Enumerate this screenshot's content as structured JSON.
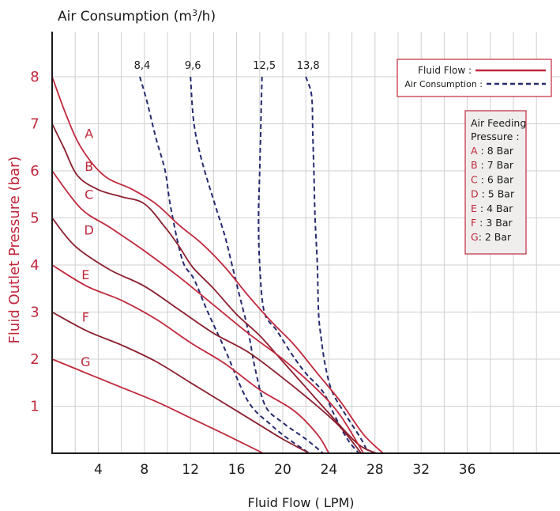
{
  "chart_data": {
    "type": "line",
    "title_prefix": "Air Consumption (m",
    "title_sup": "3",
    "title_suffix": "/h)",
    "xlabel": "Fluid Flow ( LPM)",
    "ylabel": "Fluid Outlet Pressure (bar)",
    "xlim": [
      0,
      43
    ],
    "ylim": [
      0,
      8.5
    ],
    "grid": true,
    "x_ticks": [
      4,
      8,
      12,
      16,
      20,
      24,
      28,
      32,
      36
    ],
    "y_ticks": [
      1,
      2,
      3,
      4,
      5,
      6,
      7,
      8
    ],
    "air_ticks": [
      {
        "label": "8,4",
        "x": 7.6
      },
      {
        "label": "9,6",
        "x": 12.0
      },
      {
        "label": "12,5",
        "x": 18.2
      },
      {
        "label": "13,8",
        "x": 22.0
      }
    ],
    "legend": {
      "fluid_flow_label": "Fluid Flow :",
      "air_consumption_label": "Air Consumption :"
    },
    "pressure_box": {
      "title_line1": "Air Feeding",
      "title_line2": "Pressure :",
      "items": [
        {
          "letter": "A",
          "sep": " : ",
          "text": "8 Bar"
        },
        {
          "letter": "B",
          "sep": " : ",
          "text": "7 Bar"
        },
        {
          "letter": "C",
          "sep": " : ",
          "text": "6 Bar"
        },
        {
          "letter": "D",
          "sep": " : ",
          "text": "5 Bar"
        },
        {
          "letter": "E",
          "sep": " : ",
          "text": "4 Bar"
        },
        {
          "letter": "F",
          "sep": " : ",
          "text": "3 Bar"
        },
        {
          "letter": "G",
          "sep": ": ",
          "text": "2 Bar"
        }
      ]
    },
    "fluid_flow_series": [
      {
        "name": "A",
        "color": "#c0283c",
        "label_at": [
          3.2,
          6.7
        ],
        "points": [
          [
            0,
            8
          ],
          [
            1.2,
            7.2
          ],
          [
            2.5,
            6.5
          ],
          [
            4.5,
            5.9
          ],
          [
            7,
            5.6
          ],
          [
            9,
            5.3
          ],
          [
            11,
            4.85
          ],
          [
            13,
            4.45
          ],
          [
            15,
            3.95
          ],
          [
            17,
            3.35
          ],
          [
            19,
            2.8
          ],
          [
            21,
            2.3
          ],
          [
            23,
            1.7
          ],
          [
            25,
            1.1
          ],
          [
            27,
            0.4
          ],
          [
            28.7,
            0
          ]
        ]
      },
      {
        "name": "B",
        "color": "#8b1f2e",
        "label_at": [
          3.2,
          6.0
        ],
        "points": [
          [
            0,
            7
          ],
          [
            1,
            6.5
          ],
          [
            2.2,
            5.9
          ],
          [
            4,
            5.6
          ],
          [
            6,
            5.45
          ],
          [
            8,
            5.3
          ],
          [
            9.8,
            4.8
          ],
          [
            11,
            4.4
          ],
          [
            12.2,
            3.95
          ],
          [
            14,
            3.5
          ],
          [
            16,
            2.95
          ],
          [
            18,
            2.5
          ],
          [
            20,
            1.95
          ],
          [
            22,
            1.4
          ],
          [
            24,
            0.85
          ],
          [
            26.5,
            0.2
          ],
          [
            28.1,
            0
          ]
        ]
      },
      {
        "name": "C",
        "color": "#c0283c",
        "label_at": [
          3.2,
          5.4
        ],
        "points": [
          [
            0,
            6
          ],
          [
            2.5,
            5.2
          ],
          [
            5,
            4.8
          ],
          [
            8,
            4.3
          ],
          [
            11,
            3.75
          ],
          [
            14,
            3.15
          ],
          [
            17,
            2.55
          ],
          [
            20,
            2.0
          ],
          [
            23,
            1.35
          ],
          [
            25,
            0.8
          ],
          [
            27,
            0
          ]
        ]
      },
      {
        "name": "D",
        "color": "#8b1f2e",
        "label_at": [
          3.2,
          4.65
        ],
        "points": [
          [
            0,
            5
          ],
          [
            2,
            4.4
          ],
          [
            5,
            3.9
          ],
          [
            8,
            3.55
          ],
          [
            11,
            3.05
          ],
          [
            14,
            2.55
          ],
          [
            17,
            2.15
          ],
          [
            20,
            1.6
          ],
          [
            23,
            1.0
          ],
          [
            25,
            0.55
          ],
          [
            26.8,
            0
          ]
        ]
      },
      {
        "name": "E",
        "color": "#c0283c",
        "label_at": [
          2.9,
          3.7
        ],
        "points": [
          [
            0,
            4
          ],
          [
            3,
            3.55
          ],
          [
            6,
            3.25
          ],
          [
            9,
            2.85
          ],
          [
            12,
            2.35
          ],
          [
            15,
            1.9
          ],
          [
            18,
            1.35
          ],
          [
            21,
            0.9
          ],
          [
            23,
            0.4
          ],
          [
            24,
            0
          ]
        ]
      },
      {
        "name": "F",
        "color": "#8b1f2e",
        "label_at": [
          2.9,
          2.8
        ],
        "points": [
          [
            0,
            3
          ],
          [
            3,
            2.6
          ],
          [
            6,
            2.3
          ],
          [
            9,
            1.95
          ],
          [
            12,
            1.5
          ],
          [
            15,
            1.05
          ],
          [
            18,
            0.6
          ],
          [
            20,
            0.3
          ],
          [
            22.3,
            0
          ]
        ]
      },
      {
        "name": "G",
        "color": "#c0283c",
        "label_at": [
          2.9,
          1.85
        ],
        "points": [
          [
            0,
            2
          ],
          [
            3,
            1.7
          ],
          [
            6,
            1.4
          ],
          [
            9,
            1.1
          ],
          [
            12,
            0.75
          ],
          [
            15,
            0.4
          ],
          [
            18.3,
            0
          ]
        ]
      }
    ],
    "air_series": [
      {
        "name": "8,4",
        "color": "#262a6e",
        "points": [
          [
            7.6,
            8
          ],
          [
            8.2,
            7.5
          ],
          [
            9,
            6.7
          ],
          [
            9.8,
            6
          ],
          [
            10.3,
            5.2
          ],
          [
            11.3,
            4.1
          ],
          [
            12.3,
            3.7
          ],
          [
            13.5,
            3.0
          ],
          [
            15,
            2.2
          ],
          [
            17,
            1.1
          ],
          [
            19,
            0.6
          ],
          [
            20.5,
            0.3
          ],
          [
            22.3,
            0
          ]
        ]
      },
      {
        "name": "9,6",
        "color": "#262a6e",
        "points": [
          [
            12,
            8
          ],
          [
            12.3,
            7
          ],
          [
            13,
            6.2
          ],
          [
            14.1,
            5.3
          ],
          [
            15,
            4.6
          ],
          [
            15.6,
            4.0
          ],
          [
            16.2,
            3.4
          ],
          [
            17,
            2.6
          ],
          [
            17.6,
            1.8
          ],
          [
            18.5,
            1.0
          ],
          [
            20,
            0.65
          ],
          [
            22,
            0.3
          ],
          [
            23.5,
            0
          ]
        ]
      },
      {
        "name": "12,5",
        "color": "#262a6e",
        "points": [
          [
            18.2,
            8
          ],
          [
            18.1,
            7
          ],
          [
            18,
            6
          ],
          [
            17.9,
            5
          ],
          [
            18,
            4
          ],
          [
            18.4,
            3.0
          ],
          [
            19.5,
            2.6
          ],
          [
            20.8,
            2.1
          ],
          [
            22,
            1.7
          ],
          [
            23.5,
            1.3
          ],
          [
            24.5,
            0.8
          ],
          [
            25.6,
            0.3
          ],
          [
            26.6,
            0
          ]
        ]
      },
      {
        "name": "13,8",
        "color": "#262a6e",
        "points": [
          [
            22,
            8
          ],
          [
            22.5,
            7.6
          ],
          [
            22.6,
            6.8
          ],
          [
            22.7,
            6
          ],
          [
            22.8,
            5
          ],
          [
            23,
            4
          ],
          [
            23.1,
            3
          ],
          [
            23.3,
            2.5
          ],
          [
            23.7,
            1.85
          ],
          [
            24.3,
            1.3
          ],
          [
            25.5,
            0.8
          ],
          [
            26.8,
            0.3
          ],
          [
            27.4,
            0
          ]
        ]
      }
    ]
  }
}
